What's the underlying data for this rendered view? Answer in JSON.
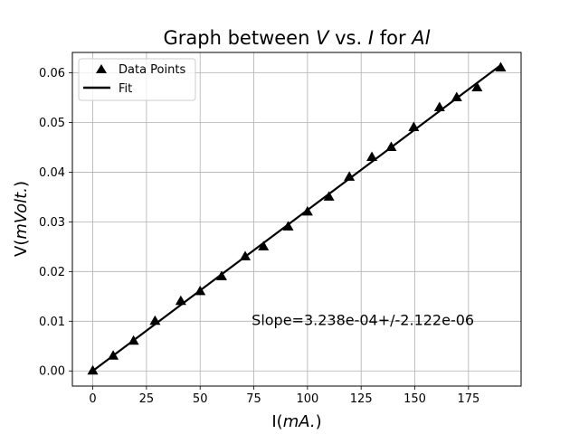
{
  "chart_data": {
    "type": "scatter",
    "title": {
      "pre": "Graph between ",
      "v": "V",
      "mid": " vs. ",
      "i": "I",
      "for": " for ",
      "al": "Al"
    },
    "xlabel": {
      "pre": "I(",
      "unit": "mA.",
      "post": ")"
    },
    "ylabel": {
      "pre": "V(",
      "unit": "mVolt.",
      "post": ")"
    },
    "xlim": [
      -9.5,
      199.5
    ],
    "ylim": [
      -0.00305,
      0.0641
    ],
    "xticks": [
      0,
      25,
      50,
      75,
      100,
      125,
      150,
      175
    ],
    "xtick_labels": [
      "0",
      "25",
      "50",
      "75",
      "100",
      "125",
      "150",
      "175"
    ],
    "yticks": [
      0.0,
      0.01,
      0.02,
      0.03,
      0.04,
      0.05,
      0.06
    ],
    "ytick_labels": [
      "0.00",
      "0.01",
      "0.02",
      "0.03",
      "0.04",
      "0.05",
      "0.06"
    ],
    "grid": true,
    "legend_position": "top-left",
    "series": [
      {
        "name": "Data Points",
        "marker": "triangle",
        "color": "#000000",
        "x": [
          0,
          9.5,
          19,
          29,
          41,
          50,
          60,
          71,
          79.5,
          91,
          100,
          110,
          119.5,
          130,
          139,
          149.5,
          161.5,
          169.5,
          179,
          190
        ],
        "y": [
          0.0,
          0.003,
          0.006,
          0.01,
          0.014,
          0.016,
          0.019,
          0.023,
          0.025,
          0.029,
          0.032,
          0.035,
          0.039,
          0.043,
          0.045,
          0.049,
          0.053,
          0.055,
          0.057,
          0.061
        ]
      },
      {
        "name": "Fit",
        "type": "line",
        "color": "#000000",
        "slope": 0.0003238,
        "x": [
          0,
          190
        ]
      }
    ],
    "annotation": {
      "text": "Slope=3.238e-04+/-2.122e-06",
      "x": 74,
      "y": 0.0103
    }
  }
}
